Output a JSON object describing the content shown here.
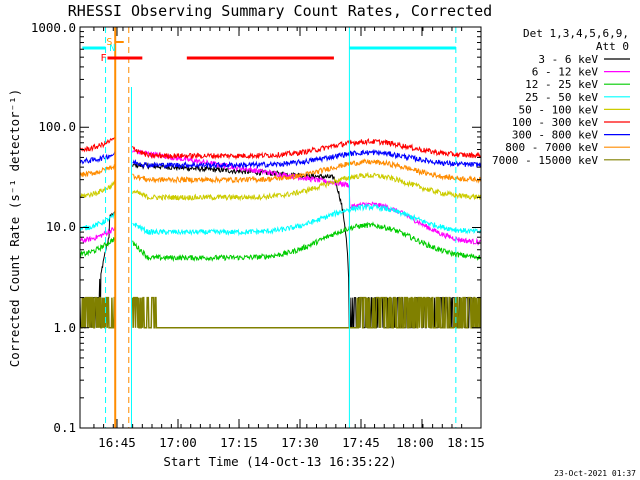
{
  "chart_data": {
    "type": "line",
    "title": "RHESSI Observing Summary Count Rates, Corrected",
    "xlabel": "Start Time (14-Oct-13 16:35:22)",
    "ylabel": "Corrected Count Rate (s⁻¹ detector⁻¹)",
    "yscale": "log",
    "ylim": [
      0.1,
      1000
    ],
    "xlim_minutes": [
      16.4,
      120.0
    ],
    "x_tick_labels": [
      "16:45",
      "17:00",
      "17:15",
      "17:30",
      "17:45",
      "18:00",
      "18:15"
    ],
    "y_tick_labels": [
      "0.1",
      "1.0",
      "10.0",
      "100.0",
      "1000.0"
    ],
    "legend_header": [
      "Det 1,3,4,5,6,9,",
      "Att 0"
    ],
    "data_gap_minutes": [
      25.5,
      30.0
    ],
    "series": [
      {
        "name": "3 - 6 keV",
        "color": "#000000",
        "shape": "flare",
        "pre": 1.6,
        "peak1": 14.0,
        "post": 45.0,
        "peak2": 35.0,
        "late": 1.6
      },
      {
        "name": "6 - 12 keV",
        "color": "#ff00ff",
        "shape": "hump",
        "pre": 7.2,
        "peak1": 12.5,
        "post": 55.0,
        "peak2": 17.0,
        "late": 7.0
      },
      {
        "name": "12 - 25 keV",
        "color": "#00cc00",
        "shape": "hump",
        "pre": 5.2,
        "peak1": 10.5,
        "post": 7.0,
        "peak2": 10.5,
        "late": 5.0
      },
      {
        "name": "25 - 50 keV",
        "color": "#00ffff",
        "shape": "hump",
        "pre": 9.5,
        "peak1": 17.0,
        "post": 11.0,
        "peak2": 16.0,
        "late": 9.0
      },
      {
        "name": "50 - 100 keV",
        "color": "#cccc00",
        "shape": "hump",
        "pre": 20.0,
        "peak1": 35.0,
        "post": 23.0,
        "peak2": 33.0,
        "late": 20.0
      },
      {
        "name": "100 - 300 keV",
        "color": "#ff0000",
        "shape": "hump",
        "pre": 58.0,
        "peak1": 97.0,
        "post": 62.0,
        "peak2": 72.0,
        "late": 52.0
      },
      {
        "name": "300 - 800 keV",
        "color": "#0000ff",
        "shape": "hump",
        "pre": 45.0,
        "peak1": 64.0,
        "post": 45.0,
        "peak2": 56.0,
        "late": 42.0
      },
      {
        "name": "800 - 7000 keV",
        "color": "#ff8c00",
        "shape": "hump",
        "pre": 33.0,
        "peak1": 50.0,
        "post": 33.0,
        "peak2": 45.0,
        "late": 30.0
      },
      {
        "name": "7000 - 15000 keV",
        "color": "#808000",
        "shape": "background",
        "base": 1.0,
        "burst": 2.0
      }
    ],
    "annotations": {
      "saa_label": "N",
      "flare_label": "F",
      "night_label": "S",
      "saa_color": "#00ffff",
      "flare_color": "#ff0000",
      "night_color": "#ff8c00"
    },
    "timestamp": "23-Oct-2021 01:37"
  }
}
